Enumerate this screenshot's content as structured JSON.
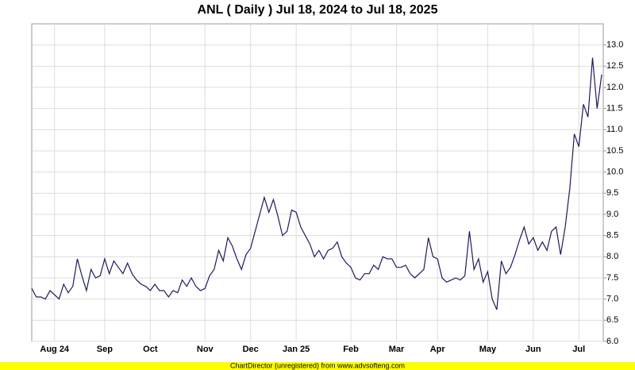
{
  "chart_data": {
    "type": "line",
    "title": "ANL ( Daily ) Jul 18, 2024 to Jul 18, 2025",
    "footer": "ChartDirector (unregistered) from www.advsofteng.com",
    "categories": [
      null,
      null,
      null,
      null,
      null,
      "Aug 24",
      null,
      null,
      null,
      null,
      null,
      null,
      null,
      null,
      null,
      null,
      "Sep",
      null,
      null,
      null,
      null,
      null,
      null,
      null,
      null,
      null,
      "Oct",
      null,
      null,
      null,
      null,
      null,
      null,
      null,
      null,
      null,
      null,
      null,
      "Nov",
      null,
      null,
      null,
      null,
      null,
      null,
      null,
      null,
      null,
      "Dec",
      null,
      null,
      null,
      null,
      null,
      null,
      null,
      null,
      null,
      "Jan 25",
      null,
      null,
      null,
      null,
      null,
      null,
      null,
      null,
      null,
      null,
      null,
      "Feb",
      null,
      null,
      null,
      null,
      null,
      null,
      null,
      null,
      null,
      "Mar",
      null,
      null,
      null,
      null,
      null,
      null,
      null,
      null,
      "Apr",
      null,
      null,
      null,
      null,
      null,
      null,
      null,
      null,
      null,
      null,
      "May",
      null,
      null,
      null,
      null,
      null,
      null,
      null,
      null,
      null,
      "Jun",
      null,
      null,
      null,
      null,
      null,
      null,
      null,
      null,
      null,
      "Jul",
      null,
      null,
      null,
      null,
      null
    ],
    "series": [
      {
        "name": "ANL",
        "color": "#1c1c5c",
        "values": [
          7.25,
          7.05,
          7.05,
          7.0,
          7.2,
          7.1,
          7.0,
          7.35,
          7.15,
          7.3,
          7.95,
          7.55,
          7.2,
          7.7,
          7.5,
          7.55,
          7.95,
          7.6,
          7.9,
          7.75,
          7.6,
          7.85,
          7.6,
          7.45,
          7.35,
          7.3,
          7.2,
          7.35,
          7.2,
          7.2,
          7.05,
          7.2,
          7.15,
          7.45,
          7.3,
          7.5,
          7.3,
          7.2,
          7.25,
          7.55,
          7.7,
          8.15,
          7.9,
          8.45,
          8.25,
          7.95,
          7.7,
          8.05,
          8.2,
          8.6,
          9.0,
          9.4,
          9.05,
          9.35,
          8.95,
          8.5,
          8.6,
          9.1,
          9.05,
          8.7,
          8.5,
          8.3,
          8.0,
          8.15,
          7.95,
          8.15,
          8.2,
          8.35,
          8.0,
          7.85,
          7.75,
          7.5,
          7.45,
          7.6,
          7.6,
          7.8,
          7.7,
          8.0,
          7.95,
          7.95,
          7.75,
          7.75,
          7.8,
          7.6,
          7.5,
          7.6,
          7.7,
          8.45,
          8.0,
          7.95,
          7.5,
          7.4,
          7.45,
          7.5,
          7.45,
          7.55,
          8.6,
          7.7,
          7.95,
          7.4,
          7.65,
          7.0,
          6.75,
          7.9,
          7.6,
          7.75,
          8.05,
          8.4,
          8.7,
          8.3,
          8.45,
          8.15,
          8.35,
          8.15,
          8.6,
          8.7,
          8.05,
          8.7,
          9.6,
          10.9,
          10.6,
          11.6,
          11.3,
          12.7,
          11.5,
          12.3
        ]
      }
    ],
    "ylim": [
      6.0,
      13.5
    ],
    "yticks": [
      {
        "value": 6,
        "label": "6.0"
      },
      6.5,
      {
        "value": 7,
        "label": "7.0"
      },
      7.5,
      {
        "value": 8,
        "label": "8.0"
      },
      8.5,
      {
        "value": 9,
        "label": "9.0"
      },
      9.5,
      {
        "value": 10,
        "label": "10.0"
      },
      10.5,
      {
        "value": 11,
        "label": "11.0"
      },
      11.5,
      {
        "value": 12,
        "label": "12.0"
      },
      12.5,
      {
        "value": 13,
        "label": "13.0"
      }
    ],
    "grid": true
  }
}
